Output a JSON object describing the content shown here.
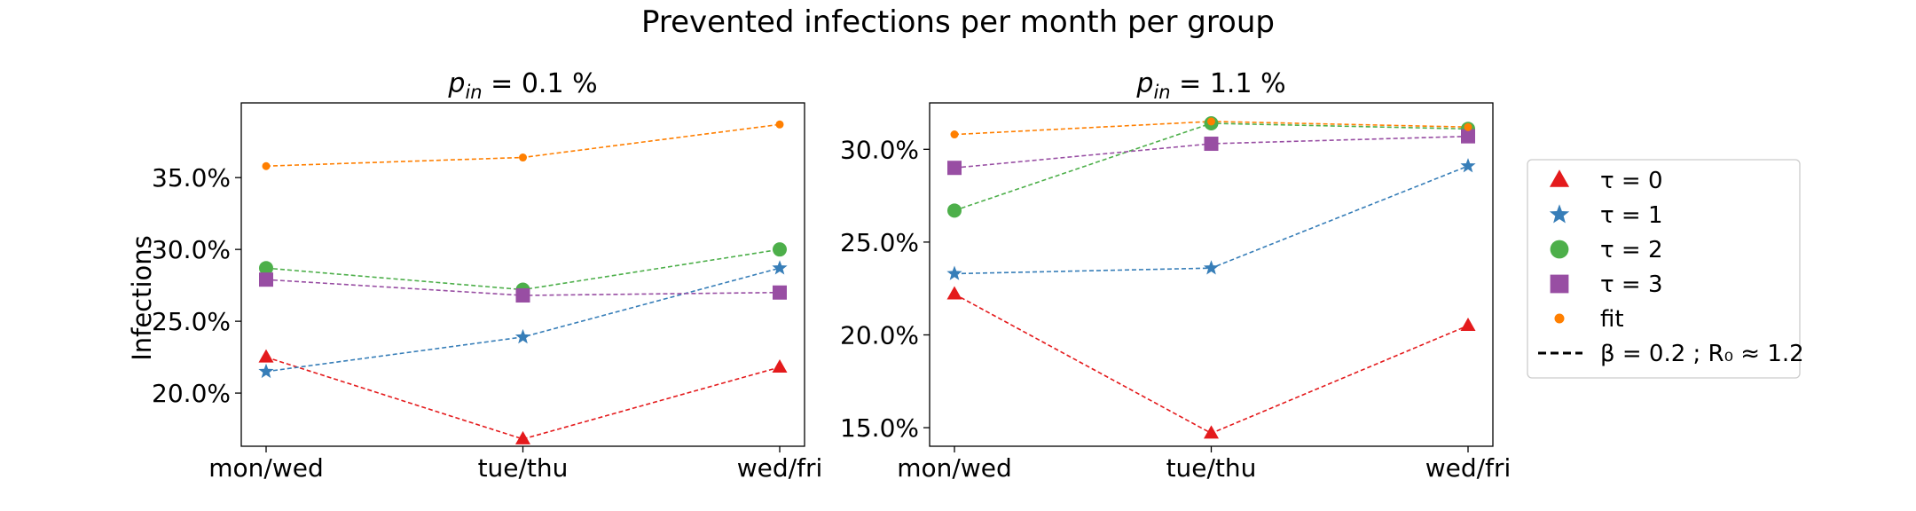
{
  "figure": {
    "suptitle": "Prevented infections per month per group",
    "ylabel": "Infections"
  },
  "colors": {
    "tau0": "#e41a1c",
    "tau1": "#377eb8",
    "tau2": "#4daf4a",
    "tau3": "#984ea3",
    "fit": "#ff7f00"
  },
  "legend": {
    "placement": "right",
    "entries": [
      {
        "key": "tau0",
        "label": "τ = 0",
        "marker": "triangle"
      },
      {
        "key": "tau1",
        "label": "τ = 1",
        "marker": "star"
      },
      {
        "key": "tau2",
        "label": "τ = 2",
        "marker": "circle"
      },
      {
        "key": "tau3",
        "label": "τ = 3",
        "marker": "square"
      },
      {
        "key": "fit",
        "label": "fit",
        "marker": "dot"
      },
      {
        "key": "beta",
        "label": "β = 0.2 ; R₀ ≈ 1.2",
        "marker": "dashed-line"
      }
    ]
  },
  "chart_data": [
    {
      "type": "line",
      "title_main": "p",
      "title_sub": "in",
      "title_rest": " = 0.1 %",
      "categories": [
        "mon/wed",
        "tue/thu",
        "wed/fri"
      ],
      "ylim": [
        16.3,
        40.2
      ],
      "yticks": [
        20,
        25,
        30,
        35
      ],
      "ytick_labels": [
        "20.0%",
        "25.0%",
        "30.0%",
        "35.0%"
      ],
      "grid": false,
      "series": [
        {
          "key": "tau0",
          "marker": "triangle",
          "values": [
            22.5,
            16.8,
            21.8
          ]
        },
        {
          "key": "tau1",
          "marker": "star",
          "values": [
            21.5,
            23.9,
            28.7
          ]
        },
        {
          "key": "tau2",
          "marker": "circle",
          "values": [
            28.7,
            27.2,
            30.0
          ]
        },
        {
          "key": "tau3",
          "marker": "square",
          "values": [
            27.9,
            26.8,
            27.0
          ]
        },
        {
          "key": "fit",
          "marker": "dot",
          "values": [
            35.8,
            36.4,
            38.7
          ]
        }
      ]
    },
    {
      "type": "line",
      "title_main": "p",
      "title_sub": "in",
      "title_rest": " = 1.1 %",
      "categories": [
        "mon/wed",
        "tue/thu",
        "wed/fri"
      ],
      "ylim": [
        14.0,
        32.5
      ],
      "yticks": [
        15,
        20,
        25,
        30
      ],
      "ytick_labels": [
        "15.0%",
        "20.0%",
        "25.0%",
        "30.0%"
      ],
      "grid": false,
      "series": [
        {
          "key": "tau0",
          "marker": "triangle",
          "values": [
            22.2,
            14.7,
            20.5
          ]
        },
        {
          "key": "tau1",
          "marker": "star",
          "values": [
            23.3,
            23.6,
            29.1
          ]
        },
        {
          "key": "tau2",
          "marker": "circle",
          "values": [
            26.7,
            31.4,
            31.1
          ]
        },
        {
          "key": "tau3",
          "marker": "square",
          "values": [
            29.0,
            30.3,
            30.7
          ]
        },
        {
          "key": "fit",
          "marker": "dot",
          "values": [
            30.8,
            31.5,
            31.2
          ]
        }
      ]
    }
  ]
}
